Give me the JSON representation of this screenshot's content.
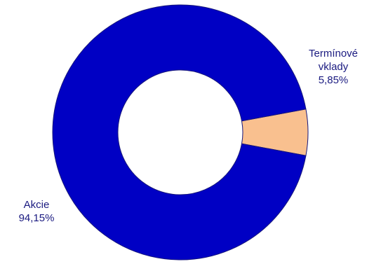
{
  "chart_data": {
    "type": "pie",
    "variant": "donut",
    "title": "",
    "slices": [
      {
        "label_lines": [
          "Termínové",
          "vklady"
        ],
        "value": 5.85,
        "value_label": "5,85%",
        "color": "#f9c08f"
      },
      {
        "label_lines": [
          "Akcie"
        ],
        "value": 94.15,
        "value_label": "94,15%",
        "color": "#0000c4"
      }
    ],
    "slice_stroke": "#17177a",
    "legend": "none"
  }
}
